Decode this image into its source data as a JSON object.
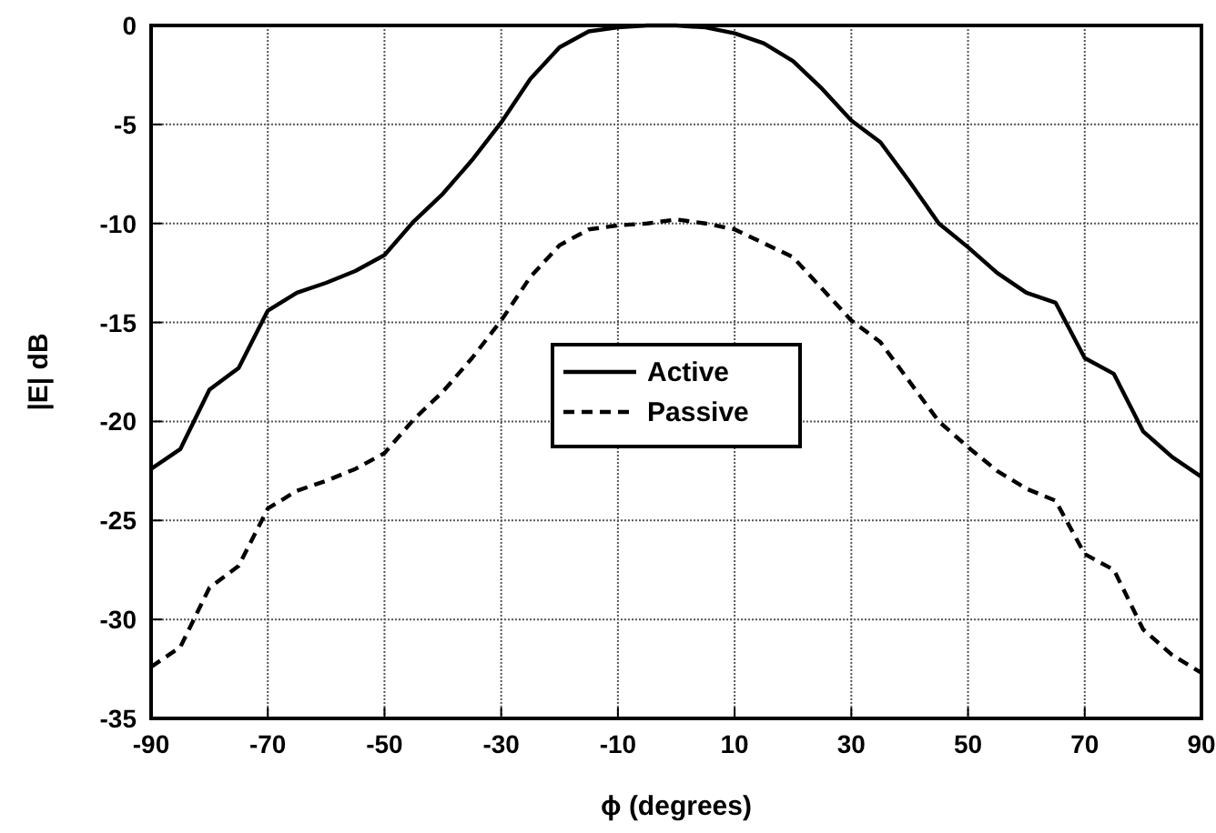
{
  "chart_data": {
    "type": "line",
    "xlabel": "ϕ (degrees)",
    "ylabel": "|E| dB",
    "x": [
      -90,
      -85,
      -80,
      -75,
      -70,
      -65,
      -60,
      -55,
      -50,
      -45,
      -40,
      -35,
      -30,
      -25,
      -20,
      -15,
      -10,
      -5,
      0,
      5,
      10,
      15,
      20,
      25,
      30,
      35,
      40,
      45,
      50,
      55,
      60,
      65,
      70,
      75,
      80,
      85,
      90
    ],
    "series": [
      {
        "name": "Active",
        "color": "#000000",
        "line_style": "solid",
        "values": [
          -22.4,
          -21.4,
          -18.4,
          -17.3,
          -14.4,
          -13.5,
          -13,
          -12.4,
          -11.6,
          -9.9,
          -8.5,
          -6.8,
          -4.9,
          -2.7,
          -1.1,
          -0.3,
          -0.1,
          0,
          0,
          -0.1,
          -0.4,
          -0.9,
          -1.8,
          -3.2,
          -4.8,
          -5.9,
          -7.9,
          -10,
          -11.2,
          -12.5,
          -13.5,
          -14,
          -16.8,
          -17.6,
          -20.5,
          -21.8,
          -22.8
        ]
      },
      {
        "name": "Passive",
        "color": "#000000",
        "line_style": "dashed",
        "values": [
          -32.4,
          -31.4,
          -28.4,
          -27.3,
          -24.4,
          -23.5,
          -23,
          -22.4,
          -21.6,
          -19.9,
          -18.5,
          -16.8,
          -14.9,
          -12.7,
          -11.1,
          -10.3,
          -10.1,
          -10,
          -9.8,
          -10,
          -10.3,
          -11,
          -11.7,
          -13.3,
          -14.9,
          -16,
          -18,
          -20,
          -21.3,
          -22.5,
          -23.4,
          -24,
          -26.7,
          -27.5,
          -30.5,
          -31.8,
          -32.7
        ]
      }
    ],
    "xlim": [
      -90,
      90
    ],
    "xticks": [
      -90,
      -70,
      -50,
      -30,
      -10,
      10,
      30,
      50,
      70,
      90
    ],
    "ylim": [
      -35,
      0
    ],
    "yticks": [
      -35,
      -30,
      -25,
      -20,
      -15,
      -10,
      -5,
      0
    ],
    "grid": true,
    "legend": "center",
    "marker": "none"
  }
}
